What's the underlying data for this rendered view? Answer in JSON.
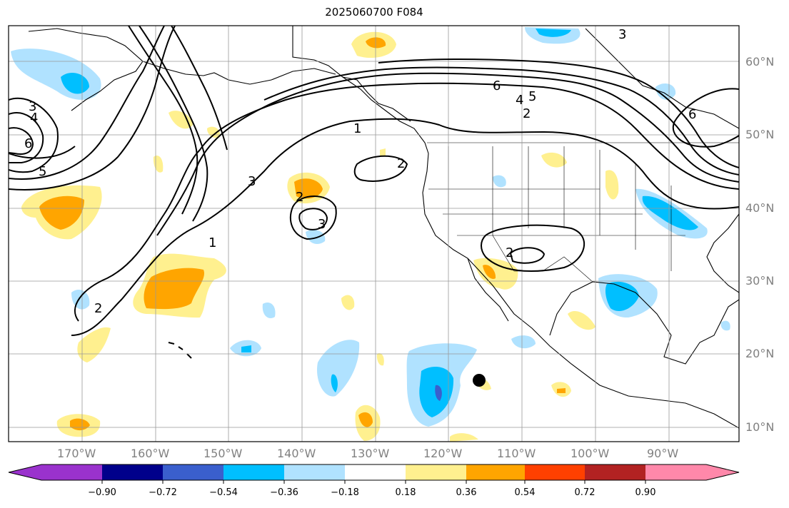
{
  "title": "2025060700 F084",
  "lat_labels": [
    "60°N",
    "50°N",
    "40°N",
    "30°N",
    "20°N",
    "10°N"
  ],
  "lon_labels": [
    "170°W",
    "160°W",
    "150°W",
    "140°W",
    "130°W",
    "120°W",
    "110°W",
    "100°W",
    "90°W"
  ],
  "contour_labels": [
    "1",
    "1",
    "2",
    "2",
    "2",
    "2",
    "2",
    "3",
    "3",
    "3",
    "3",
    "4",
    "4",
    "5",
    "5",
    "6",
    "6",
    "6"
  ],
  "colorbar": {
    "tick_labels": [
      "−0.90",
      "−0.72",
      "−0.54",
      "−0.36",
      "−0.18",
      "0.18",
      "0.36",
      "0.54",
      "0.72",
      "0.90"
    ],
    "colors": [
      "#9a32cd",
      "#00008b",
      "#3a5fcd",
      "#00bfff",
      "#b0e2ff",
      "#ffffff",
      "#fff08f",
      "#ffa500",
      "#ff4000",
      "#b22222",
      "#ff88aa",
      "#ff88aa"
    ]
  },
  "shading_colors": {
    "light_blue": "#b0e2ff",
    "blue": "#00bfff",
    "royal": "#3a5fcd",
    "yellow": "#fff08f",
    "orange": "#ffa500"
  },
  "marker": {
    "type": "filled-circle",
    "color": "#000000"
  }
}
